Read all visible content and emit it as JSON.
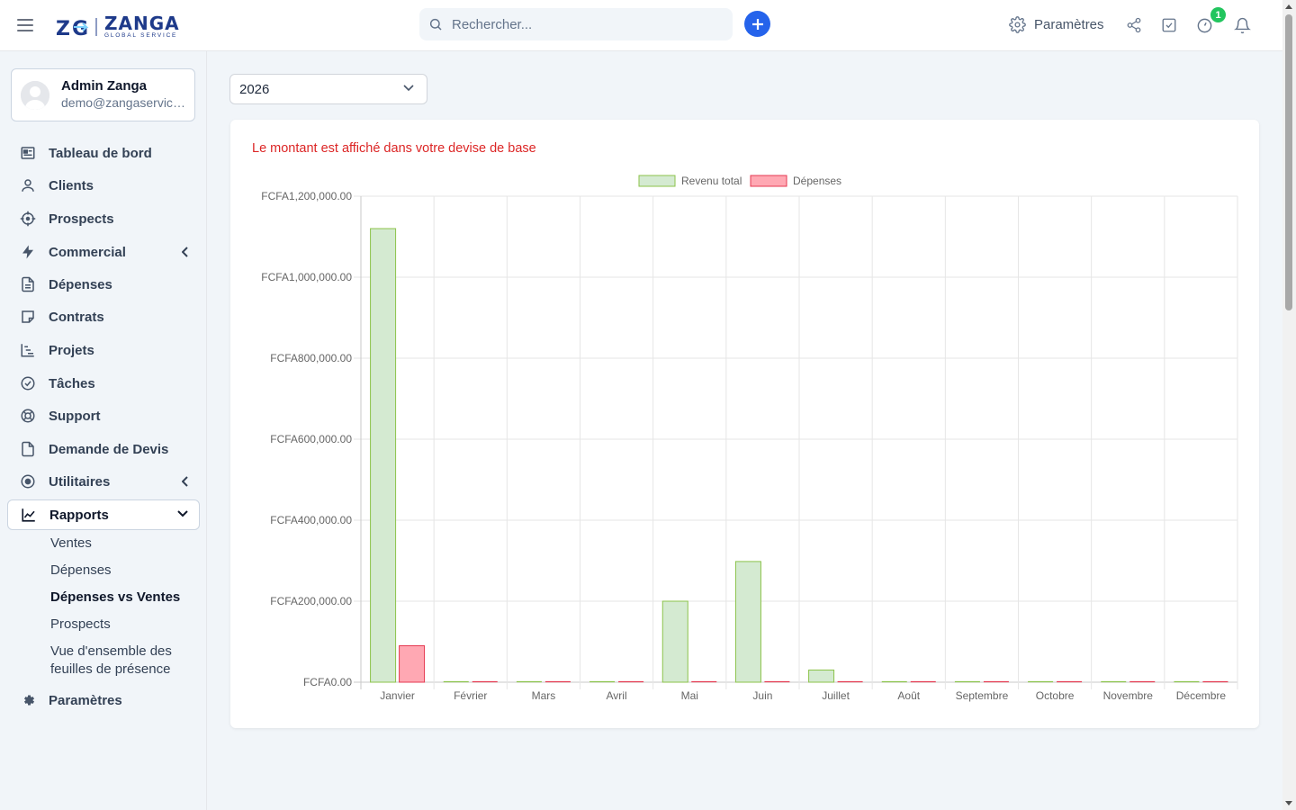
{
  "app": {
    "logo_name": "ZANGA",
    "logo_sub": "GLOBAL SERVICE",
    "search_placeholder": "Rechercher...",
    "settings_label": "Paramètres",
    "notification_badge": "1"
  },
  "user": {
    "name": "Admin Zanga",
    "email": "demo@zangaservice..."
  },
  "sidebar": {
    "items": [
      {
        "label": "Tableau de bord",
        "icon": "dashboard-icon"
      },
      {
        "label": "Clients",
        "icon": "user-icon"
      },
      {
        "label": "Prospects",
        "icon": "crosshair-icon"
      },
      {
        "label": "Commercial",
        "icon": "bolt-icon"
      },
      {
        "label": "Dépenses",
        "icon": "file-icon"
      },
      {
        "label": "Contrats",
        "icon": "sticky-note-icon"
      },
      {
        "label": "Projets",
        "icon": "gantt-icon"
      },
      {
        "label": "Tâches",
        "icon": "check-circle-icon"
      },
      {
        "label": "Support",
        "icon": "lifebuoy-icon"
      },
      {
        "label": "Demande de Devis",
        "icon": "document-icon"
      },
      {
        "label": "Utilitaires",
        "icon": "dot-circle-icon"
      },
      {
        "label": "Rapports",
        "icon": "line-chart-icon"
      },
      {
        "label": "Paramètres",
        "icon": "gear-icon"
      }
    ],
    "reports_sub": [
      "Ventes",
      "Dépenses",
      "Dépenses vs Ventes",
      "Prospects",
      "Vue d'ensemble des",
      "feuilles de présence"
    ]
  },
  "filters": {
    "year": "2026"
  },
  "main": {
    "note": "Le montant est affiché dans votre devise de base"
  },
  "chart_data": {
    "type": "bar",
    "categories": [
      "Janvier",
      "Février",
      "Mars",
      "Avril",
      "Mai",
      "Juin",
      "Juillet",
      "Août",
      "Septembre",
      "Octobre",
      "Novembre",
      "Décembre"
    ],
    "series": [
      {
        "name": "Revenu total",
        "values": [
          1120000,
          0,
          0,
          0,
          200000,
          298000,
          30000,
          0,
          0,
          0,
          0,
          0
        ],
        "fill": "#d4ead1",
        "stroke": "#8bc34a"
      },
      {
        "name": "Dépenses",
        "values": [
          90000,
          0,
          0,
          0,
          0,
          0,
          0,
          0,
          0,
          0,
          0,
          0
        ],
        "fill": "#ffa8b3",
        "stroke": "#e53950"
      }
    ],
    "ylim": [
      0,
      1200000
    ],
    "yticks": [
      0,
      200000,
      400000,
      600000,
      800000,
      1000000,
      1200000
    ],
    "ytick_labels": [
      "FCFA0.00",
      "FCFA200,000.00",
      "FCFA400,000.00",
      "FCFA600,000.00",
      "FCFA800,000.00",
      "FCFA1,000,000.00",
      "FCFA1,200,000.00"
    ],
    "legend_position": "top-center",
    "grid": true
  }
}
